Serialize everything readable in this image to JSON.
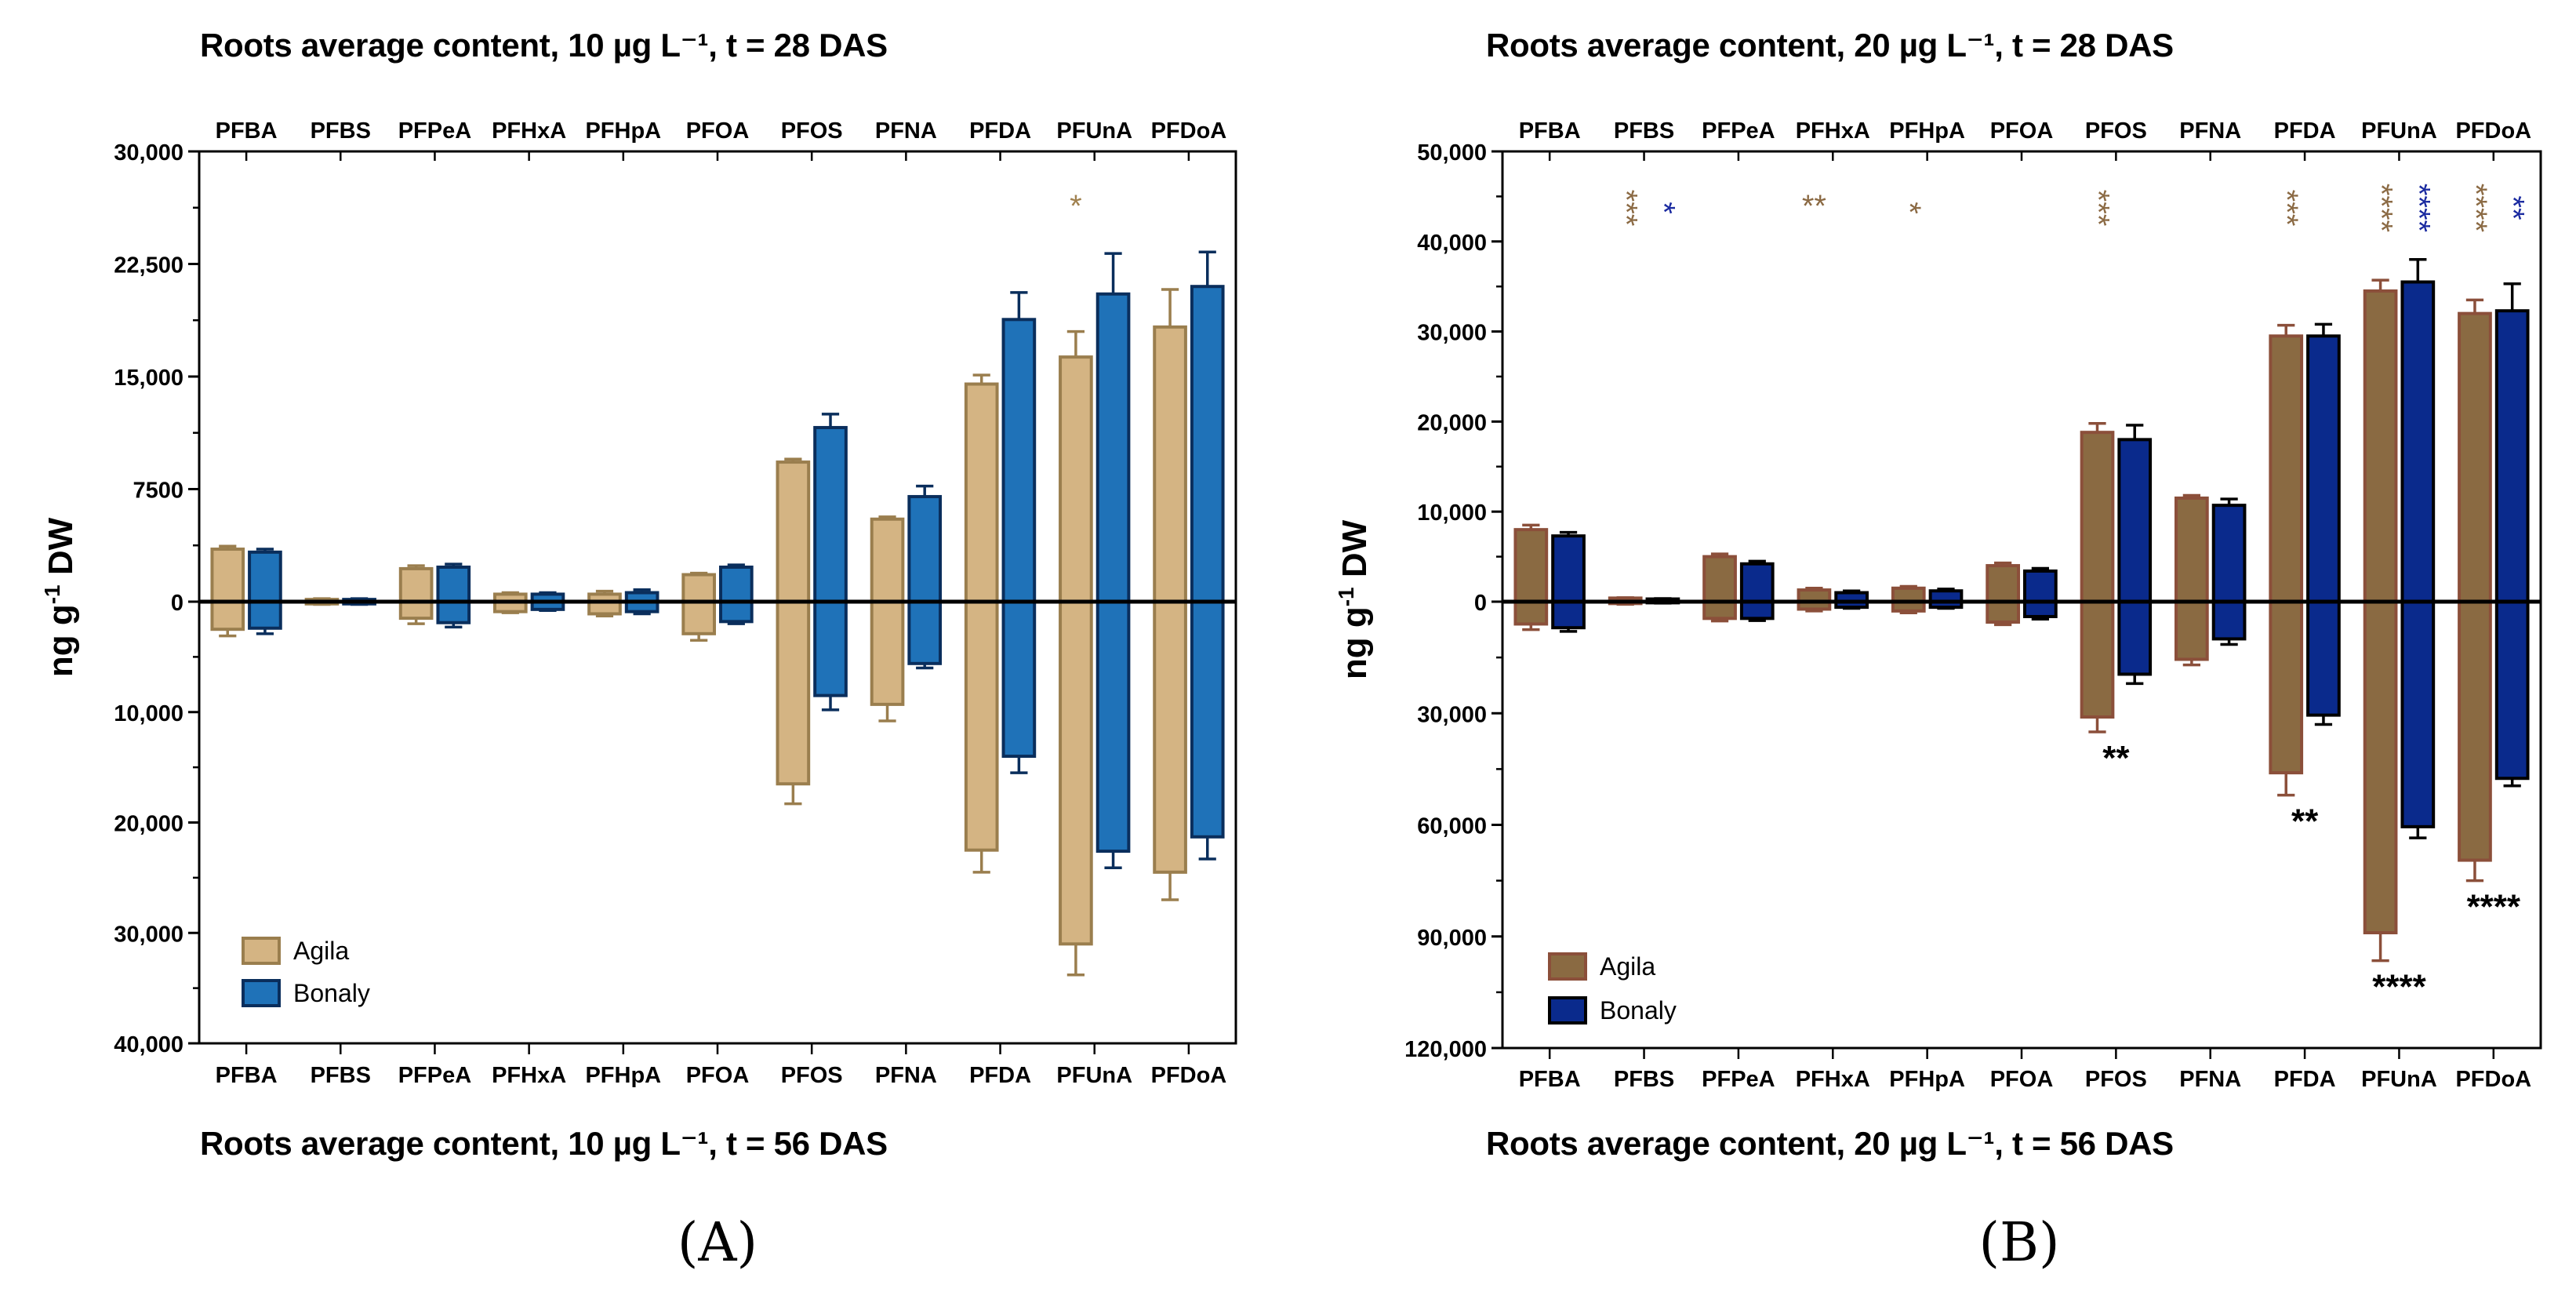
{
  "panels": {
    "a": {
      "title_top": "Roots average content, 10 µg L⁻¹, t = 28 DAS",
      "title_bottom": "Roots average content, 10 µg L⁻¹, t = 56 DAS",
      "letter": "(A)"
    },
    "b": {
      "title_top": "Roots average content, 20 µg L⁻¹, t = 28 DAS",
      "title_bottom": "Roots average content, 20 µg L⁻¹, t = 56 DAS",
      "letter": "(B)"
    }
  },
  "chart_data": [
    {
      "id": "A",
      "type": "bar",
      "layout": "mirrored-bar",
      "categories": [
        "PFBA",
        "PFBS",
        "PFPeA",
        "PFHxA",
        "PFHpA",
        "PFOA",
        "PFOS",
        "PFNA",
        "PFDA",
        "PFUnA",
        "PFDoA"
      ],
      "ylabel": "ng g⁻¹ DW",
      "ylabel_main": "ng g",
      "ylabel_sup": "-1",
      "ylabel_rest": " DW",
      "ylim_top": [
        0,
        30000
      ],
      "ylim_bottom": [
        0,
        40000
      ],
      "yticks_top": [
        0,
        7500,
        15000,
        22500,
        30000
      ],
      "yticks_top_labels": [
        "0",
        "7500",
        "15,000",
        "22,500",
        "30,000"
      ],
      "yticks_bottom": [
        10000,
        20000,
        30000,
        40000
      ],
      "yticks_bottom_labels": [
        "10,000",
        "20,000",
        "30,000",
        "40,000"
      ],
      "legend": "bottom-left",
      "series": [
        {
          "name": "Agila",
          "fill": "#d4b483",
          "stroke": "#9a7e4e",
          "top_values": [
            3500,
            150,
            2200,
            500,
            500,
            1800,
            9300,
            5500,
            14500,
            16300,
            18300
          ],
          "top_errors": [
            200,
            50,
            200,
            100,
            200,
            100,
            200,
            150,
            600,
            1700,
            2500
          ],
          "bottom_values": [
            2500,
            200,
            1500,
            900,
            1100,
            2900,
            16500,
            9300,
            22500,
            31000,
            24500
          ],
          "bottom_errors": [
            600,
            50,
            500,
            100,
            200,
            600,
            1800,
            1500,
            2000,
            2800,
            2500
          ]
        },
        {
          "name": "Bonaly",
          "fill": "#1f72b8",
          "stroke": "#0a2e5c",
          "top_values": [
            3300,
            150,
            2300,
            500,
            600,
            2300,
            11600,
            7000,
            18800,
            20500,
            21000
          ],
          "top_errors": [
            200,
            50,
            200,
            100,
            200,
            150,
            900,
            700,
            1800,
            2700,
            2300
          ],
          "bottom_values": [
            2400,
            200,
            1900,
            700,
            900,
            1800,
            8500,
            5600,
            14000,
            22600,
            21300
          ],
          "bottom_errors": [
            500,
            50,
            400,
            100,
            200,
            200,
            1300,
            400,
            1500,
            1500,
            2000
          ]
        }
      ],
      "annotations": [
        {
          "category": "PFUnA",
          "half": "top",
          "series": "Agila",
          "text": "*"
        }
      ]
    },
    {
      "id": "B",
      "type": "bar",
      "layout": "mirrored-bar",
      "categories": [
        "PFBA",
        "PFBS",
        "PFPeA",
        "PFHxA",
        "PFHpA",
        "PFOA",
        "PFOS",
        "PFNA",
        "PFDA",
        "PFUnA",
        "PFDoA"
      ],
      "ylabel": "ng g⁻¹ DW",
      "ylabel_main": "ng g",
      "ylabel_sup": "-1",
      "ylabel_rest": " DW",
      "ylim_top": [
        0,
        50000
      ],
      "ylim_bottom": [
        0,
        120000
      ],
      "yticks_top": [
        0,
        10000,
        20000,
        30000,
        40000,
        50000
      ],
      "yticks_top_labels": [
        "0",
        "10,000",
        "20,000",
        "30,000",
        "40,000",
        "50,000"
      ],
      "yticks_bottom": [
        30000,
        60000,
        90000,
        120000
      ],
      "yticks_bottom_labels": [
        "30,000",
        "60,000",
        "90,000",
        "120,000"
      ],
      "legend": "bottom-left",
      "series": [
        {
          "name": "Agila",
          "fill": "#8a6a42",
          "stroke": "#8b4f3a",
          "top_values": [
            8000,
            400,
            5000,
            1300,
            1500,
            4000,
            18800,
            11500,
            29500,
            34500,
            32000
          ],
          "top_errors": [
            500,
            50,
            300,
            200,
            200,
            300,
            1000,
            300,
            1200,
            1200,
            1500
          ],
          "bottom_values": [
            6000,
            500,
            4500,
            2000,
            2500,
            5500,
            31000,
            15500,
            46000,
            89000,
            69500
          ],
          "bottom_errors": [
            1500,
            200,
            700,
            500,
            500,
            700,
            4000,
            1500,
            6000,
            7500,
            5500
          ]
        },
        {
          "name": "Bonaly",
          "fill": "#0a2a8c",
          "stroke": "#000000",
          "top_values": [
            7300,
            300,
            4200,
            1000,
            1200,
            3400,
            18000,
            10700,
            29500,
            35500,
            32300
          ],
          "top_errors": [
            400,
            50,
            300,
            200,
            200,
            300,
            1600,
            700,
            1300,
            2500,
            3000
          ],
          "bottom_values": [
            7000,
            300,
            4500,
            1500,
            1500,
            4000,
            19500,
            10000,
            30500,
            60500,
            47500
          ],
          "bottom_errors": [
            1000,
            100,
            600,
            300,
            300,
            700,
            2500,
            1500,
            2500,
            3000,
            2000
          ]
        }
      ],
      "annotations": [
        {
          "category": "PFBS",
          "half": "top",
          "series": "Agila",
          "text": "***",
          "vertical": true
        },
        {
          "category": "PFBS",
          "half": "top",
          "series": "Bonaly",
          "text": "*",
          "vertical": true
        },
        {
          "category": "PFHxA",
          "half": "top",
          "series": "Agila",
          "text": "**",
          "vertical": false
        },
        {
          "category": "PFHpA",
          "half": "top",
          "series": "Agila",
          "text": "*",
          "vertical": true
        },
        {
          "category": "PFOS",
          "half": "top",
          "series": "Agila",
          "text": "***",
          "vertical": true
        },
        {
          "category": "PFDA",
          "half": "top",
          "series": "Agila",
          "text": "***",
          "vertical": true
        },
        {
          "category": "PFUnA",
          "half": "top",
          "series": "Agila",
          "text": "****",
          "vertical": true
        },
        {
          "category": "PFUnA",
          "half": "top",
          "series": "Bonaly",
          "text": "****",
          "vertical": true
        },
        {
          "category": "PFDoA",
          "half": "top",
          "series": "Agila",
          "text": "****",
          "vertical": true
        },
        {
          "category": "PFDoA",
          "half": "top",
          "series": "Bonaly",
          "text": "**",
          "vertical": true
        },
        {
          "category": "PFOS",
          "half": "bottom",
          "series": "both",
          "text": "**"
        },
        {
          "category": "PFDA",
          "half": "bottom",
          "series": "both",
          "text": "**"
        },
        {
          "category": "PFUnA",
          "half": "bottom",
          "series": "both",
          "text": "****"
        },
        {
          "category": "PFDoA",
          "half": "bottom",
          "series": "both",
          "text": "****"
        }
      ]
    }
  ]
}
